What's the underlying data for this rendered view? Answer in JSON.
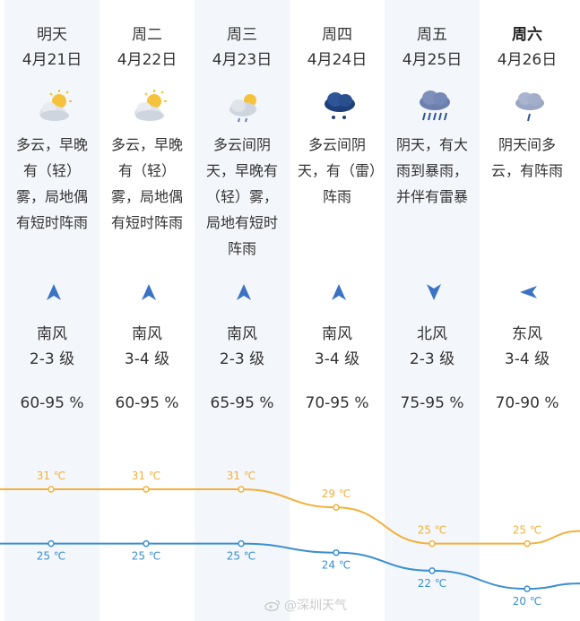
{
  "days": [
    {
      "day": "明天",
      "date": "4月21日",
      "desc": "多云，早晚有（轻）雾，局地偶有短时阵雨",
      "icon": "partly-cloudy-sun-icon",
      "wind_dir": "up",
      "wind": "南风",
      "level": "2-3 级",
      "humidity": "60-95 %",
      "high": "31 ℃",
      "low": "25 ℃",
      "bold": false
    },
    {
      "day": "周二",
      "date": "4月22日",
      "desc": "多云，早晚有（轻）雾，局地偶有短时阵雨",
      "icon": "partly-cloudy-sun-icon",
      "wind_dir": "up",
      "wind": "南风",
      "level": "3-4 级",
      "humidity": "60-95 %",
      "high": "31 ℃",
      "low": "25 ℃",
      "bold": false
    },
    {
      "day": "周三",
      "date": "4月23日",
      "desc": "多云间阴天，早晚有（轻）雾，局地有短时阵雨",
      "icon": "sun-cloud-shower-icon",
      "wind_dir": "up",
      "wind": "南风",
      "level": "2-3 级",
      "humidity": "65-95 %",
      "high": "31 ℃",
      "low": "25 ℃",
      "bold": false
    },
    {
      "day": "周四",
      "date": "4月24日",
      "desc": "多云间阴天，有（雷）阵雨",
      "icon": "thunder-shower-cloud-icon",
      "wind_dir": "up",
      "wind": "南风",
      "level": "3-4 级",
      "humidity": "70-95 %",
      "high": "29 ℃",
      "low": "24 ℃",
      "bold": false
    },
    {
      "day": "周五",
      "date": "4月25日",
      "desc": "阴天，有大雨到暴雨，并伴有雷暴",
      "icon": "heavy-rain-cloud-icon",
      "wind_dir": "down",
      "wind": "北风",
      "level": "2-3 级",
      "humidity": "75-95 %",
      "high": "25 ℃",
      "low": "22 ℃",
      "bold": false
    },
    {
      "day": "周六",
      "date": "4月26日",
      "desc": "阴天间多云，有阵雨",
      "icon": "shower-cloud-icon",
      "wind_dir": "left",
      "wind": "东风",
      "level": "3-4 级",
      "humidity": "70-90 %",
      "high": "25 ℃",
      "low": "20 ℃",
      "bold": true
    }
  ],
  "chart_data": {
    "type": "line",
    "categories": [
      "4月21日",
      "4月22日",
      "4月23日",
      "4月24日",
      "4月25日",
      "4月26日"
    ],
    "series": [
      {
        "values": [
          31,
          31,
          31,
          29,
          25,
          25
        ]
      },
      {
        "values": [
          25,
          25,
          25,
          24,
          22,
          20
        ]
      }
    ]
  },
  "colors": {
    "high_line": "#f2b13a",
    "low_line": "#3a8fd0",
    "icon_cloud": "#6d7fae",
    "sun": "#f5c23c"
  },
  "watermark": "@深圳天气"
}
